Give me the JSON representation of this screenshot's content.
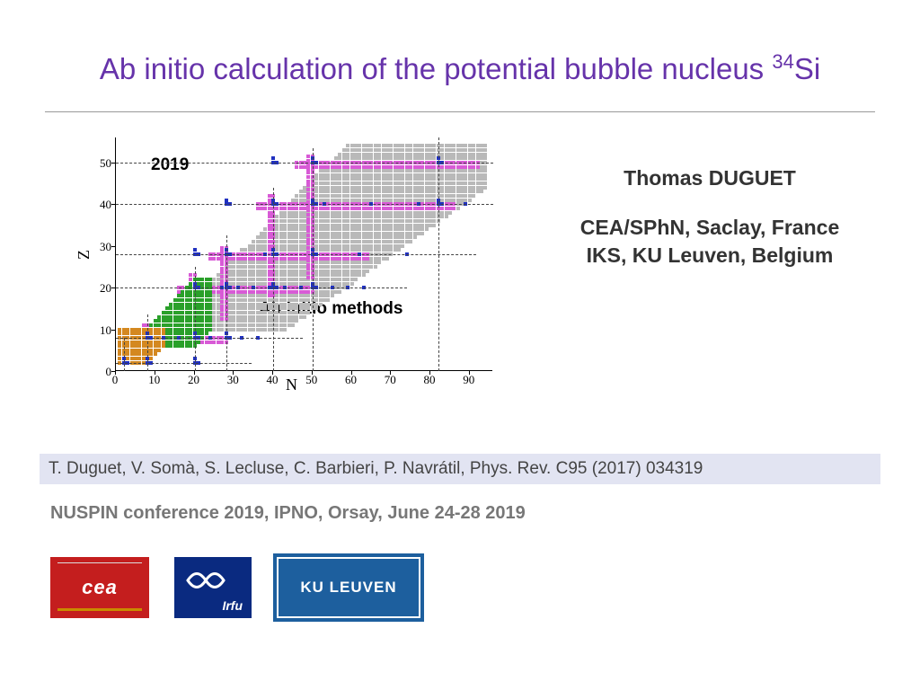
{
  "title_prefix": "Ab initio calculation of the potential bubble nucleus ",
  "title_super": "34",
  "title_suffix": "Si",
  "chart": {
    "year_label": "2019",
    "method_label": "Ab initio methods",
    "xlabel": "N",
    "ylabel": "Z",
    "xlim": [
      0,
      96
    ],
    "ylim": [
      0,
      56
    ],
    "xticks": [
      0,
      10,
      20,
      30,
      40,
      50,
      60,
      70,
      80,
      90
    ],
    "yticks": [
      0,
      10,
      20,
      30,
      40,
      50
    ],
    "colors": {
      "grey": "#b9b9b9",
      "magenta": "#d85ad6",
      "blue": "#2030c0",
      "green": "#2aa02a",
      "orange": "#d48820"
    },
    "magic_z": [
      2,
      8,
      20,
      28,
      40,
      50
    ],
    "magic_n": [
      2,
      8,
      20,
      28,
      40,
      50,
      82
    ],
    "regions": {
      "grey_band": {
        "z_min": 10,
        "z_max": 54,
        "n_offset_lo": 2,
        "n_offset_hi": 28
      },
      "green": {
        "z_min": 6,
        "z_max": 22,
        "n_lo": 4,
        "n_hi": 24
      },
      "orange": {
        "z_min": 2,
        "z_max": 10,
        "n_lo": 1,
        "n_hi": 12
      }
    }
  },
  "author": {
    "name": "Thomas DUGUET",
    "affil1": "CEA/SPhN, Saclay, France",
    "affil2": "IKS, KU Leuven, Belgium"
  },
  "citation": "T. Duguet, V. Somà, S. Lecluse, C. Barbieri, P. Navrátil, Phys. Rev. C95 (2017) 034319",
  "conference": "NUSPIN conference 2019, IPNO, Orsay, June 24-28 2019",
  "logos": {
    "cea": "cea",
    "irfu": "Irfu",
    "kuleuven": "KU LEUVEN"
  }
}
